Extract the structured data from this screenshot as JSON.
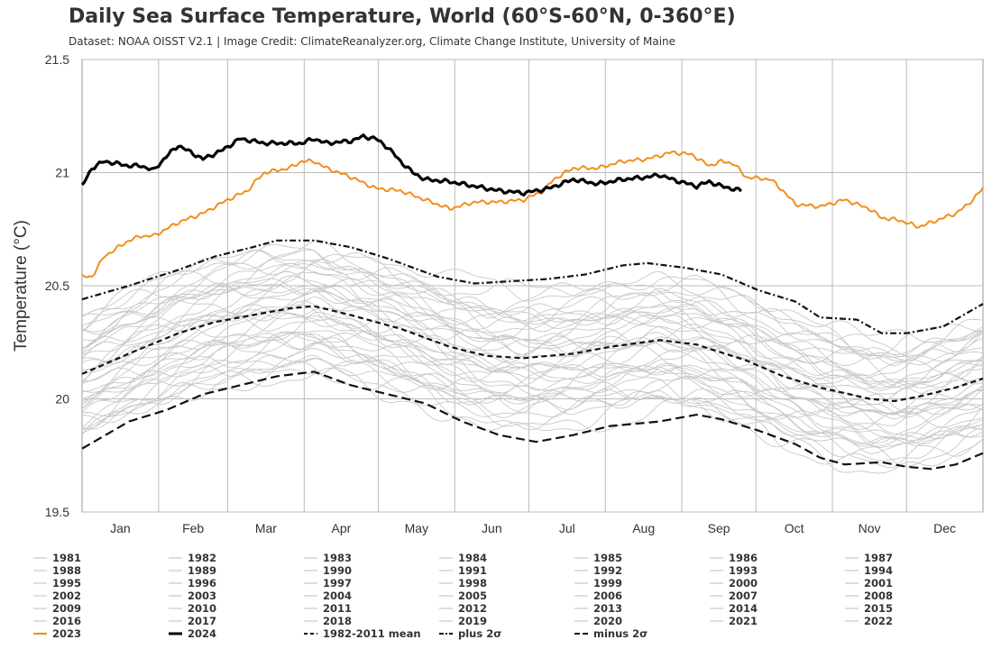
{
  "title": "Daily Sea Surface Temperature, World (60°S-60°N, 0-360°E)",
  "subtitle": "Dataset: NOAA OISST V2.1 | Image Credit: ClimateReanalyzer.org, Climate Change Institute, University of Maine",
  "chart_data": {
    "type": "line",
    "ylabel": "Temperature (°C)",
    "ylim": [
      19.5,
      21.5
    ],
    "yticks": [
      "19.5",
      "20",
      "20.5",
      "21",
      "21.5"
    ],
    "x_range_days": [
      1,
      366
    ],
    "months": [
      "Jan",
      "Feb",
      "Mar",
      "Apr",
      "May",
      "Jun",
      "Jul",
      "Aug",
      "Sep",
      "Oct",
      "Nov",
      "Dec"
    ],
    "grid": true,
    "legend_position": "bottom",
    "colors": {
      "year": "#c8c8c8",
      "y2023": "#f28e1c",
      "y2024": "#000000",
      "stats": "#111111",
      "grid": "#bbbbbb",
      "axis": "#999999"
    },
    "years_grey": [
      "1981",
      "1982",
      "1983",
      "1984",
      "1985",
      "1986",
      "1987",
      "1988",
      "1989",
      "1990",
      "1991",
      "1992",
      "1993",
      "1994",
      "1995",
      "1996",
      "1997",
      "1998",
      "1999",
      "2000",
      "2001",
      "2002",
      "2003",
      "2004",
      "2005",
      "2006",
      "2007",
      "2008",
      "2009",
      "2010",
      "2011",
      "2012",
      "2013",
      "2014",
      "2015",
      "2016",
      "2017",
      "2018",
      "2019",
      "2020",
      "2021",
      "2022"
    ],
    "series": [
      {
        "name": "2023",
        "style": "solid-orange",
        "points": [
          [
            1,
            20.54
          ],
          [
            5,
            20.54
          ],
          [
            10,
            20.63
          ],
          [
            20,
            20.7
          ],
          [
            25,
            20.72
          ],
          [
            30,
            20.72
          ],
          [
            40,
            20.78
          ],
          [
            50,
            20.82
          ],
          [
            60,
            20.88
          ],
          [
            68,
            20.92
          ],
          [
            72,
            20.97
          ],
          [
            75,
            21.0
          ],
          [
            85,
            21.02
          ],
          [
            90,
            21.05
          ],
          [
            95,
            21.05
          ],
          [
            100,
            21.02
          ],
          [
            110,
            20.98
          ],
          [
            120,
            20.93
          ],
          [
            130,
            20.92
          ],
          [
            140,
            20.88
          ],
          [
            150,
            20.84
          ],
          [
            160,
            20.87
          ],
          [
            170,
            20.87
          ],
          [
            180,
            20.88
          ],
          [
            188,
            20.92
          ],
          [
            192,
            20.97
          ],
          [
            200,
            21.02
          ],
          [
            210,
            21.02
          ],
          [
            220,
            21.05
          ],
          [
            230,
            21.06
          ],
          [
            240,
            21.09
          ],
          [
            248,
            21.08
          ],
          [
            255,
            21.03
          ],
          [
            260,
            21.05
          ],
          [
            265,
            21.04
          ],
          [
            270,
            20.98
          ],
          [
            280,
            20.97
          ],
          [
            285,
            20.92
          ],
          [
            290,
            20.86
          ],
          [
            300,
            20.85
          ],
          [
            310,
            20.88
          ],
          [
            320,
            20.84
          ],
          [
            325,
            20.8
          ],
          [
            332,
            20.79
          ],
          [
            340,
            20.76
          ],
          [
            350,
            20.8
          ],
          [
            355,
            20.82
          ],
          [
            360,
            20.86
          ],
          [
            366,
            20.93
          ]
        ]
      },
      {
        "name": "2024",
        "style": "solid-black",
        "points": [
          [
            1,
            20.94
          ],
          [
            5,
            21.02
          ],
          [
            10,
            21.05
          ],
          [
            20,
            21.03
          ],
          [
            25,
            21.03
          ],
          [
            30,
            21.01
          ],
          [
            35,
            21.07
          ],
          [
            40,
            21.12
          ],
          [
            50,
            21.06
          ],
          [
            58,
            21.1
          ],
          [
            65,
            21.15
          ],
          [
            70,
            21.14
          ],
          [
            75,
            21.13
          ],
          [
            85,
            21.13
          ],
          [
            90,
            21.13
          ],
          [
            95,
            21.15
          ],
          [
            100,
            21.13
          ],
          [
            110,
            21.14
          ],
          [
            115,
            21.16
          ],
          [
            120,
            21.15
          ],
          [
            125,
            21.11
          ],
          [
            130,
            21.05
          ],
          [
            135,
            21.0
          ],
          [
            140,
            20.97
          ],
          [
            150,
            20.96
          ],
          [
            160,
            20.94
          ],
          [
            170,
            20.92
          ],
          [
            180,
            20.91
          ],
          [
            190,
            20.93
          ],
          [
            200,
            20.97
          ],
          [
            210,
            20.95
          ],
          [
            220,
            20.97
          ],
          [
            230,
            20.98
          ],
          [
            235,
            20.99
          ],
          [
            240,
            20.97
          ],
          [
            250,
            20.94
          ],
          [
            255,
            20.96
          ],
          [
            260,
            20.94
          ],
          [
            268,
            20.92
          ]
        ]
      },
      {
        "name": "1982-2011 mean",
        "style": "dashed",
        "points": [
          [
            1,
            20.11
          ],
          [
            20,
            20.2
          ],
          [
            40,
            20.29
          ],
          [
            55,
            20.34
          ],
          [
            70,
            20.37
          ],
          [
            85,
            20.4
          ],
          [
            95,
            20.41
          ],
          [
            110,
            20.37
          ],
          [
            130,
            20.31
          ],
          [
            150,
            20.23
          ],
          [
            165,
            20.19
          ],
          [
            180,
            20.18
          ],
          [
            200,
            20.2
          ],
          [
            215,
            20.23
          ],
          [
            235,
            20.26
          ],
          [
            250,
            20.24
          ],
          [
            270,
            20.17
          ],
          [
            285,
            20.1
          ],
          [
            300,
            20.05
          ],
          [
            320,
            20.0
          ],
          [
            330,
            19.99
          ],
          [
            340,
            20.01
          ],
          [
            355,
            20.05
          ],
          [
            366,
            20.09
          ]
        ]
      },
      {
        "name": "plus 2σ",
        "style": "dash-dot",
        "points": [
          [
            1,
            20.44
          ],
          [
            20,
            20.5
          ],
          [
            40,
            20.57
          ],
          [
            55,
            20.63
          ],
          [
            70,
            20.67
          ],
          [
            80,
            20.7
          ],
          [
            95,
            20.7
          ],
          [
            110,
            20.67
          ],
          [
            125,
            20.62
          ],
          [
            145,
            20.54
          ],
          [
            160,
            20.51
          ],
          [
            175,
            20.52
          ],
          [
            190,
            20.53
          ],
          [
            205,
            20.55
          ],
          [
            220,
            20.59
          ],
          [
            230,
            20.6
          ],
          [
            245,
            20.58
          ],
          [
            260,
            20.55
          ],
          [
            275,
            20.48
          ],
          [
            290,
            20.43
          ],
          [
            300,
            20.36
          ],
          [
            315,
            20.35
          ],
          [
            325,
            20.29
          ],
          [
            335,
            20.29
          ],
          [
            350,
            20.32
          ],
          [
            366,
            20.42
          ]
        ]
      },
      {
        "name": "minus 2σ",
        "style": "long-dash",
        "points": [
          [
            1,
            19.78
          ],
          [
            20,
            19.9
          ],
          [
            35,
            19.95
          ],
          [
            50,
            20.02
          ],
          [
            65,
            20.06
          ],
          [
            80,
            20.1
          ],
          [
            95,
            20.12
          ],
          [
            110,
            20.06
          ],
          [
            125,
            20.02
          ],
          [
            140,
            19.98
          ],
          [
            155,
            19.9
          ],
          [
            170,
            19.84
          ],
          [
            185,
            19.81
          ],
          [
            200,
            19.84
          ],
          [
            215,
            19.88
          ],
          [
            235,
            19.9
          ],
          [
            250,
            19.93
          ],
          [
            260,
            19.91
          ],
          [
            275,
            19.86
          ],
          [
            290,
            19.8
          ],
          [
            300,
            19.74
          ],
          [
            310,
            19.71
          ],
          [
            325,
            19.72
          ],
          [
            335,
            19.7
          ],
          [
            345,
            19.69
          ],
          [
            355,
            19.71
          ],
          [
            366,
            19.76
          ]
        ]
      }
    ]
  }
}
